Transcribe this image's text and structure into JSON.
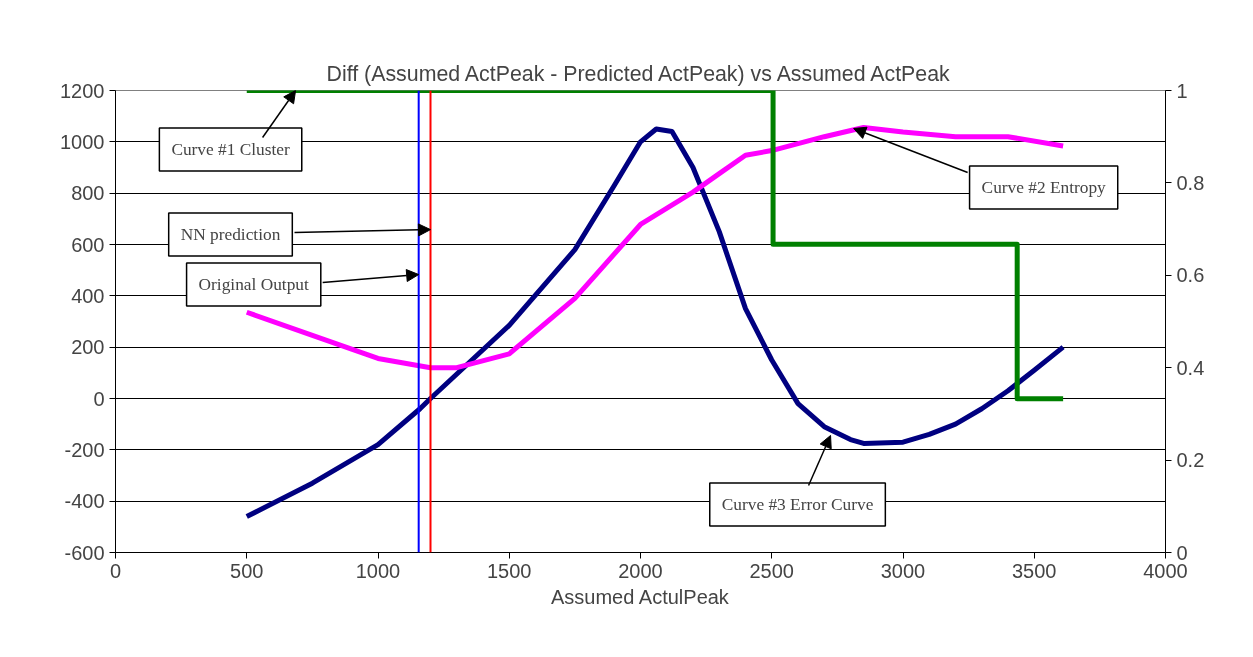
{
  "chart_data": {
    "type": "line",
    "title": "Diff (Assumed ActPeak - Predicted ActPeak) vs Assumed ActPeak",
    "xlabel": "Assumed ActulPeak",
    "xlim": [
      0,
      4000
    ],
    "xticks": [
      0,
      500,
      1000,
      1500,
      2000,
      2500,
      3000,
      3500,
      4000
    ],
    "ylim": [
      -600,
      1200
    ],
    "yticks": [
      -600,
      -400,
      -200,
      0,
      200,
      400,
      600,
      800,
      1000,
      1200
    ],
    "y2lim": [
      0,
      1
    ],
    "y2ticks": [
      0,
      {
        "value": 0.2,
        "label": "0.2"
      },
      {
        "value": 0.4,
        "label": "0.4"
      },
      {
        "value": 0.6,
        "label": "0.6"
      },
      {
        "value": 0.8,
        "label": "0.8"
      },
      1
    ],
    "grid": "y",
    "marker": "none",
    "line_style": "solid",
    "series": [
      {
        "color": "#000080",
        "x": [
          500,
          750,
          1000,
          1160,
          1200,
          1500,
          1750,
          1900,
          2000,
          2060,
          2120,
          2200,
          2300,
          2400,
          2500,
          2600,
          2700,
          2800,
          2850,
          3000,
          3100,
          3200,
          3300,
          3400,
          3500,
          3610
        ],
        "values": [
          -460,
          -330,
          -180,
          -40,
          0,
          285,
          580,
          830,
          1000,
          1050,
          1040,
          900,
          650,
          350,
          150,
          -20,
          -110,
          -160,
          -175,
          -170,
          -140,
          -100,
          -40,
          30,
          110,
          200
        ]
      },
      {
        "axis": "y2",
        "color": "#ff00ff",
        "x": [
          500,
          750,
          1000,
          1200,
          1300,
          1500,
          1750,
          2000,
          2200,
          2300,
          2400,
          2500,
          2700,
          2850,
          3000,
          3200,
          3400,
          3610
        ],
        "values": [
          0.52,
          0.47,
          0.42,
          0.4,
          0.4,
          0.43,
          0.55,
          0.71,
          0.78,
          0.82,
          0.86,
          0.87,
          0.9,
          0.92,
          0.91,
          0.9,
          0.9,
          0.88
        ]
      },
      {
        "type": "step",
        "axis": "y2",
        "color": "#008000",
        "x": [
          500,
          2505,
          3435,
          3610
        ],
        "values": [
          1,
          0.667,
          0.333,
          0.333
        ]
      }
    ],
    "ref_lines": [
      {
        "axis": "x",
        "value": 1155,
        "color": "#0000ff"
      },
      {
        "axis": "x",
        "value": 1200,
        "color": "#ff0000"
      }
    ],
    "annotations": [
      {
        "text": "Curve #1 Cluster",
        "x": 686,
        "y": 1200
      },
      {
        "text": "NN prediction",
        "x": 1200,
        "y": 658
      },
      {
        "text": "Original Output",
        "x": 1155,
        "y": 483
      },
      {
        "text": "Curve #2 Entropy",
        "x": 2812,
        "y": 1052
      },
      {
        "text": "Curve #3 Error Curve",
        "x": 2724,
        "y": -144
      }
    ]
  }
}
